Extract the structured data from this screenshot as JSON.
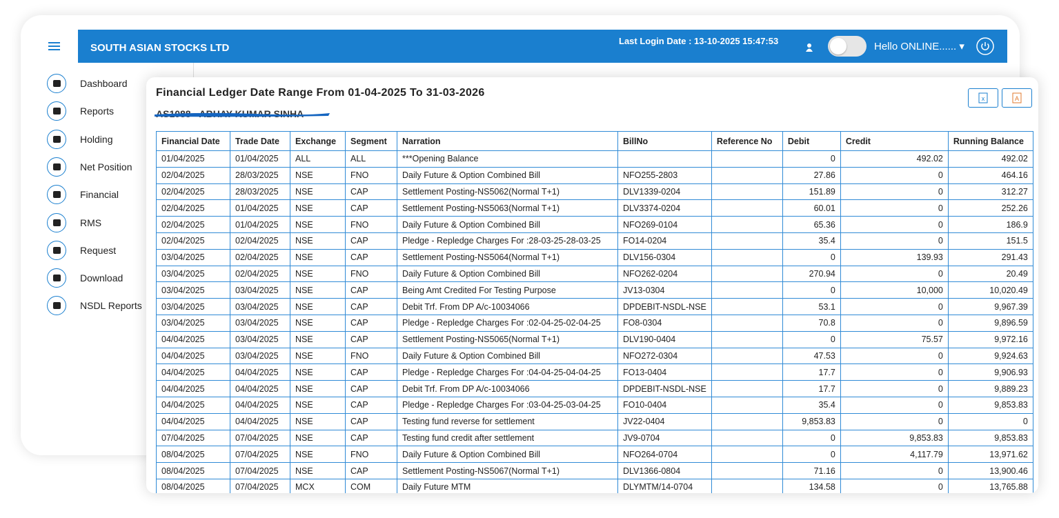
{
  "header": {
    "company": "SOUTH ASIAN STOCKS LTD",
    "last_login": "Last Login Date : 13-10-2025 15:47:53",
    "greeting": "Hello ONLINE......"
  },
  "sidebar": {
    "items": [
      "Dashboard",
      "Reports",
      "Holding",
      "Net Position",
      "Financial",
      "RMS",
      "Request",
      "Download",
      "NSDL Reports"
    ]
  },
  "ledger": {
    "title": "Financial Ledger Date Range From 01-04-2025 To 31-03-2026",
    "client": "AS1088 - ABHAY KUMAR SINHA"
  },
  "table": {
    "columns": [
      "Financial Date",
      "Trade Date",
      "Exchange",
      "Segment",
      "Narration",
      "BillNo",
      "Reference No",
      "Debit",
      "Credit",
      "Running Balance"
    ],
    "rows": [
      [
        "01/04/2025",
        "01/04/2025",
        "ALL",
        "ALL",
        "***Opening Balance",
        null,
        null,
        "0",
        "492.02",
        "492.02"
      ],
      [
        "02/04/2025",
        "28/03/2025",
        "NSE",
        "FNO",
        "Daily Future & Option Combined Bill",
        "NFO255-2803",
        null,
        "27.86",
        "0",
        "464.16"
      ],
      [
        "02/04/2025",
        "28/03/2025",
        "NSE",
        "CAP",
        "Settlement Posting-NS5062(Normal T+1)",
        "DLV1339-0204",
        null,
        "151.89",
        "0",
        "312.27"
      ],
      [
        "02/04/2025",
        "01/04/2025",
        "NSE",
        "CAP",
        "Settlement Posting-NS5063(Normal T+1)",
        "DLV3374-0204",
        null,
        "60.01",
        "0",
        "252.26"
      ],
      [
        "02/04/2025",
        "01/04/2025",
        "NSE",
        "FNO",
        "Daily Future & Option Combined Bill",
        "NFO269-0104",
        null,
        "65.36",
        "0",
        "186.9"
      ],
      [
        "02/04/2025",
        "02/04/2025",
        "NSE",
        "CAP",
        "Pledge - Repledge Charges For :28-03-25-28-03-25",
        "FO14-0204",
        null,
        "35.4",
        "0",
        "151.5"
      ],
      [
        "03/04/2025",
        "02/04/2025",
        "NSE",
        "CAP",
        "Settlement Posting-NS5064(Normal T+1)",
        "DLV156-0304",
        null,
        "0",
        "139.93",
        "291.43"
      ],
      [
        "03/04/2025",
        "02/04/2025",
        "NSE",
        "FNO",
        "Daily Future & Option Combined Bill",
        "NFO262-0204",
        null,
        "270.94",
        "0",
        "20.49"
      ],
      [
        "03/04/2025",
        "03/04/2025",
        "NSE",
        "CAP",
        "Being Amt Credited For Testing Purpose",
        "JV13-0304",
        null,
        "0",
        "10,000",
        "10,020.49"
      ],
      [
        "03/04/2025",
        "03/04/2025",
        "NSE",
        "CAP",
        "Debit Trf. From DP A/c-10034066",
        "DPDEBIT-NSDL-NSE",
        null,
        "53.1",
        "0",
        "9,967.39"
      ],
      [
        "03/04/2025",
        "03/04/2025",
        "NSE",
        "CAP",
        "Pledge - Repledge Charges For :02-04-25-02-04-25",
        "FO8-0304",
        null,
        "70.8",
        "0",
        "9,896.59"
      ],
      [
        "04/04/2025",
        "03/04/2025",
        "NSE",
        "CAP",
        "Settlement Posting-NS5065(Normal T+1)",
        "DLV190-0404",
        null,
        "0",
        "75.57",
        "9,972.16"
      ],
      [
        "04/04/2025",
        "03/04/2025",
        "NSE",
        "FNO",
        "Daily Future & Option Combined Bill",
        "NFO272-0304",
        null,
        "47.53",
        "0",
        "9,924.63"
      ],
      [
        "04/04/2025",
        "04/04/2025",
        "NSE",
        "CAP",
        "Pledge - Repledge Charges For :04-04-25-04-04-25",
        "FO13-0404",
        null,
        "17.7",
        "0",
        "9,906.93"
      ],
      [
        "04/04/2025",
        "04/04/2025",
        "NSE",
        "CAP",
        "Debit Trf. From DP A/c-10034066",
        "DPDEBIT-NSDL-NSE",
        null,
        "17.7",
        "0",
        "9,889.23"
      ],
      [
        "04/04/2025",
        "04/04/2025",
        "NSE",
        "CAP",
        "Pledge - Repledge Charges For :03-04-25-03-04-25",
        "FO10-0404",
        null,
        "35.4",
        "0",
        "9,853.83"
      ],
      [
        "04/04/2025",
        "04/04/2025",
        "NSE",
        "CAP",
        "Testing fund reverse for settlement",
        "JV22-0404",
        null,
        "9,853.83",
        "0",
        "0"
      ],
      [
        "07/04/2025",
        "07/04/2025",
        "NSE",
        "CAP",
        "Testing fund credit after settlement",
        "JV9-0704",
        null,
        "0",
        "9,853.83",
        "9,853.83"
      ],
      [
        "08/04/2025",
        "07/04/2025",
        "NSE",
        "FNO",
        "Daily Future & Option Combined Bill",
        "NFO264-0704",
        null,
        "0",
        "4,117.79",
        "13,971.62"
      ],
      [
        "08/04/2025",
        "07/04/2025",
        "NSE",
        "CAP",
        "Settlement Posting-NS5067(Normal T+1)",
        "DLV1366-0804",
        null,
        "71.16",
        "0",
        "13,900.46"
      ],
      [
        "08/04/2025",
        "07/04/2025",
        "MCX",
        "COM",
        "Daily Future MTM",
        "DLYMTM/14-0704",
        null,
        "134.58",
        "0",
        "13,765.88"
      ]
    ]
  }
}
